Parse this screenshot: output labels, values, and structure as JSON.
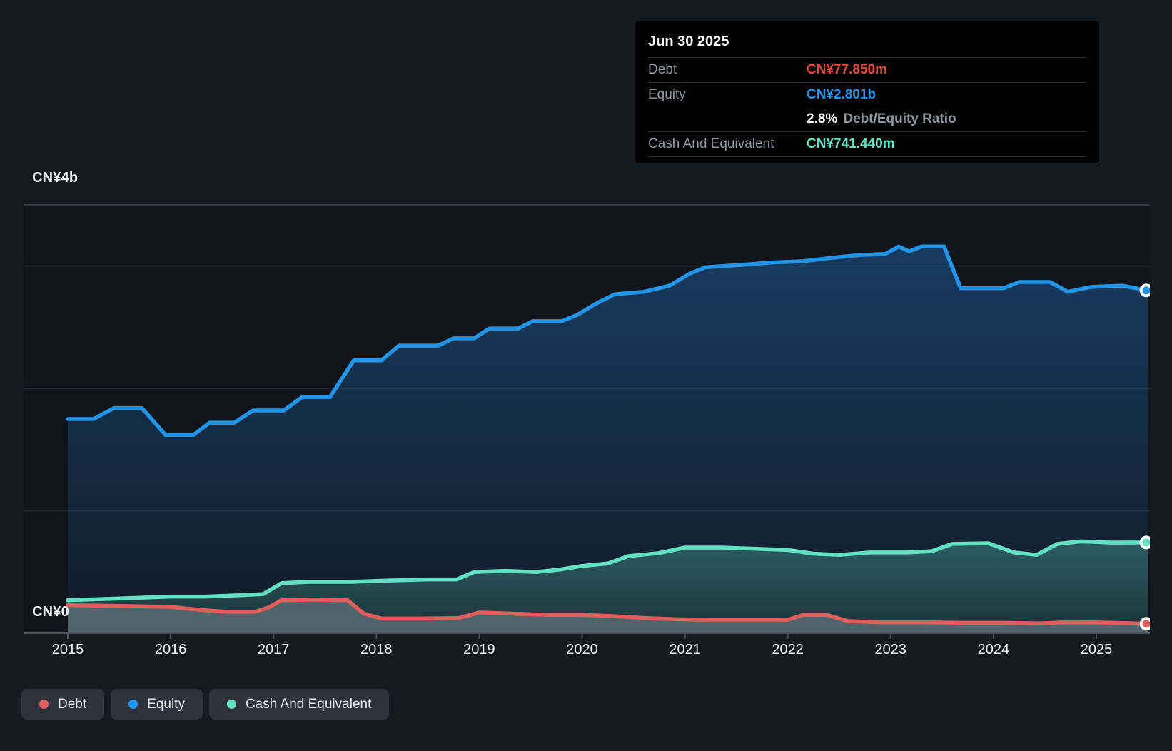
{
  "colors": {
    "background": "#151a21",
    "plot_background": "#10151c",
    "tooltip_background": "#000000",
    "grid": "#262c35",
    "grid_top": "#3a414b",
    "axis": "#4b525c",
    "text": "#f1f3f5",
    "text_muted": "#93989f",
    "debt": "#e05e5e",
    "debt_value": "#e8483c",
    "equity": "#2196f3",
    "cash": "#64e0c5"
  },
  "tooltip": {
    "date": "Jun 30 2025",
    "debt_label": "Debt",
    "debt_value": "CN¥77.850m",
    "equity_label": "Equity",
    "equity_value": "CN¥2.801b",
    "ratio_value": "2.8%",
    "ratio_label": "Debt/Equity Ratio",
    "cash_label": "Cash And Equivalent",
    "cash_value": "CN¥741.440m"
  },
  "legend": {
    "items": [
      {
        "label": "Debt",
        "color": "#e05e5e"
      },
      {
        "label": "Equity",
        "color": "#2196f3"
      },
      {
        "label": "Cash And Equivalent",
        "color": "#64e0c5"
      }
    ]
  },
  "chart_data": {
    "type": "area",
    "title": "",
    "xlabel": "",
    "ylabel": "",
    "y_unit": "CN¥ billions",
    "y_top_label": "CN¥4b",
    "y_zero_label": "CN¥0",
    "ylim": [
      0,
      4
    ],
    "x_range": [
      2015,
      2025.5
    ],
    "x_ticks": [
      2015,
      2016,
      2017,
      2018,
      2019,
      2020,
      2021,
      2022,
      2023,
      2024,
      2025
    ],
    "gridlines_b": [
      3.5,
      3,
      2,
      1
    ],
    "grid": true,
    "legend_position": "bottom-left",
    "latest_date": "Jun 30 2025",
    "latest": {
      "debt_b": 0.07785,
      "equity_b": 2.801,
      "cash_b": 0.74144,
      "debt_equity_ratio_pct": 2.8
    },
    "series": [
      {
        "name": "Equity",
        "color": "#2494e7",
        "fill_top": "rgba(36,132,222,0.38)",
        "fill_bottom": "rgba(36,132,222,0.05)",
        "points": [
          [
            2015.0,
            1.75
          ],
          [
            2015.25,
            1.75
          ],
          [
            2015.45,
            1.84
          ],
          [
            2015.72,
            1.84
          ],
          [
            2015.95,
            1.62
          ],
          [
            2016.22,
            1.62
          ],
          [
            2016.38,
            1.72
          ],
          [
            2016.62,
            1.72
          ],
          [
            2016.8,
            1.82
          ],
          [
            2017.1,
            1.82
          ],
          [
            2017.28,
            1.93
          ],
          [
            2017.55,
            1.93
          ],
          [
            2017.78,
            2.23
          ],
          [
            2018.05,
            2.23
          ],
          [
            2018.22,
            2.35
          ],
          [
            2018.6,
            2.35
          ],
          [
            2018.75,
            2.41
          ],
          [
            2018.95,
            2.41
          ],
          [
            2019.1,
            2.49
          ],
          [
            2019.38,
            2.49
          ],
          [
            2019.52,
            2.55
          ],
          [
            2019.8,
            2.55
          ],
          [
            2019.95,
            2.6
          ],
          [
            2020.15,
            2.7
          ],
          [
            2020.32,
            2.77
          ],
          [
            2020.6,
            2.79
          ],
          [
            2020.85,
            2.84
          ],
          [
            2021.05,
            2.94
          ],
          [
            2021.2,
            2.99
          ],
          [
            2021.55,
            3.01
          ],
          [
            2021.85,
            3.03
          ],
          [
            2022.15,
            3.04
          ],
          [
            2022.45,
            3.07
          ],
          [
            2022.7,
            3.09
          ],
          [
            2022.95,
            3.1
          ],
          [
            2023.08,
            3.16
          ],
          [
            2023.18,
            3.12
          ],
          [
            2023.3,
            3.16
          ],
          [
            2023.52,
            3.16
          ],
          [
            2023.68,
            2.82
          ],
          [
            2024.1,
            2.82
          ],
          [
            2024.25,
            2.87
          ],
          [
            2024.55,
            2.87
          ],
          [
            2024.72,
            2.79
          ],
          [
            2024.95,
            2.83
          ],
          [
            2025.25,
            2.84
          ],
          [
            2025.5,
            2.801
          ]
        ]
      },
      {
        "name": "Cash And Equivalent",
        "color": "#64e0c5",
        "fill_top": "rgba(100,224,197,0.42)",
        "fill_bottom": "rgba(100,224,197,0.12)",
        "points": [
          [
            2015.0,
            0.27
          ],
          [
            2015.35,
            0.28
          ],
          [
            2015.7,
            0.29
          ],
          [
            2016.0,
            0.3
          ],
          [
            2016.35,
            0.3
          ],
          [
            2016.65,
            0.31
          ],
          [
            2016.9,
            0.32
          ],
          [
            2017.08,
            0.41
          ],
          [
            2017.35,
            0.42
          ],
          [
            2017.75,
            0.42
          ],
          [
            2018.1,
            0.43
          ],
          [
            2018.5,
            0.44
          ],
          [
            2018.78,
            0.44
          ],
          [
            2018.95,
            0.5
          ],
          [
            2019.25,
            0.51
          ],
          [
            2019.55,
            0.5
          ],
          [
            2019.78,
            0.52
          ],
          [
            2020.0,
            0.55
          ],
          [
            2020.25,
            0.57
          ],
          [
            2020.45,
            0.63
          ],
          [
            2020.75,
            0.655
          ],
          [
            2021.0,
            0.7
          ],
          [
            2021.35,
            0.7
          ],
          [
            2021.7,
            0.69
          ],
          [
            2022.0,
            0.68
          ],
          [
            2022.25,
            0.65
          ],
          [
            2022.5,
            0.64
          ],
          [
            2022.8,
            0.66
          ],
          [
            2023.15,
            0.66
          ],
          [
            2023.4,
            0.67
          ],
          [
            2023.6,
            0.73
          ],
          [
            2023.95,
            0.735
          ],
          [
            2024.2,
            0.66
          ],
          [
            2024.42,
            0.64
          ],
          [
            2024.62,
            0.73
          ],
          [
            2024.85,
            0.75
          ],
          [
            2025.15,
            0.74
          ],
          [
            2025.5,
            0.7414
          ]
        ]
      },
      {
        "name": "Debt",
        "color": "#e05e5e",
        "fill_top": "rgba(235,228,240,0.10)",
        "fill_bottom": "rgba(235,228,240,0.27)",
        "points": [
          [
            2015.0,
            0.23
          ],
          [
            2015.35,
            0.225
          ],
          [
            2015.7,
            0.22
          ],
          [
            2016.0,
            0.215
          ],
          [
            2016.3,
            0.19
          ],
          [
            2016.55,
            0.175
          ],
          [
            2016.82,
            0.175
          ],
          [
            2016.95,
            0.21
          ],
          [
            2017.08,
            0.27
          ],
          [
            2017.4,
            0.275
          ],
          [
            2017.72,
            0.27
          ],
          [
            2017.88,
            0.16
          ],
          [
            2018.05,
            0.12
          ],
          [
            2018.45,
            0.12
          ],
          [
            2018.8,
            0.125
          ],
          [
            2019.0,
            0.17
          ],
          [
            2019.35,
            0.16
          ],
          [
            2019.7,
            0.15
          ],
          [
            2020.0,
            0.15
          ],
          [
            2020.3,
            0.14
          ],
          [
            2020.6,
            0.125
          ],
          [
            2020.9,
            0.115
          ],
          [
            2021.2,
            0.11
          ],
          [
            2021.6,
            0.11
          ],
          [
            2022.0,
            0.11
          ],
          [
            2022.15,
            0.15
          ],
          [
            2022.38,
            0.15
          ],
          [
            2022.58,
            0.1
          ],
          [
            2022.9,
            0.09
          ],
          [
            2023.3,
            0.09
          ],
          [
            2023.7,
            0.085
          ],
          [
            2024.1,
            0.085
          ],
          [
            2024.45,
            0.08
          ],
          [
            2024.7,
            0.09
          ],
          [
            2025.0,
            0.088
          ],
          [
            2025.3,
            0.082
          ],
          [
            2025.5,
            0.0778
          ]
        ]
      }
    ]
  }
}
